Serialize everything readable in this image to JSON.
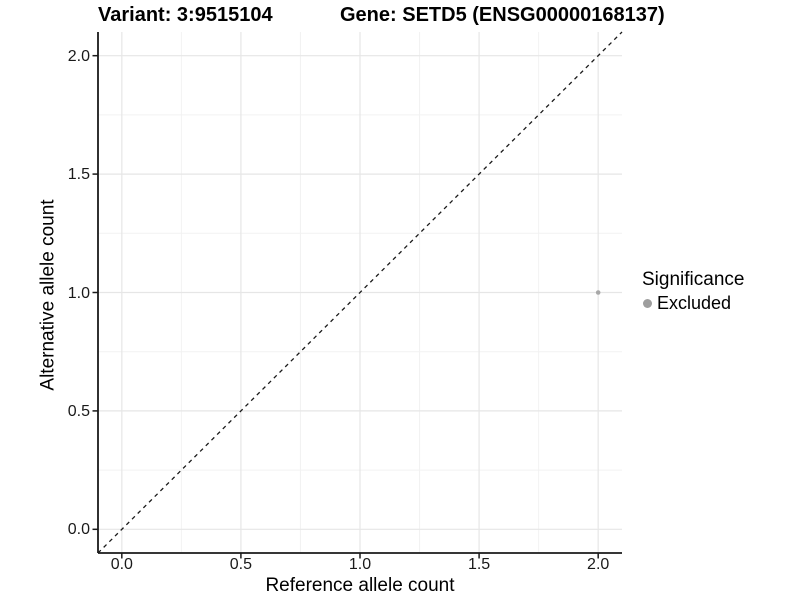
{
  "titles": {
    "variant": "Variant: 3:9515104",
    "gene": "Gene: SETD5 (ENSG00000168137)"
  },
  "legend": {
    "title": "Significance",
    "items": [
      {
        "label": "Excluded",
        "color": "#9e9e9e"
      }
    ]
  },
  "colors": {
    "background": "#ffffff",
    "grid_major": "#e6e6e6",
    "grid_minor": "#f2f2f2",
    "axis": "#1a1a1a",
    "abline": "#1a1a1a",
    "point": "#a8a8a8",
    "text": "#000000"
  },
  "chart_data": {
    "type": "scatter",
    "title_left": "Variant: 3:9515104",
    "title_right": "Gene: SETD5 (ENSG00000168137)",
    "xlabel": "Reference allele count",
    "ylabel": "Alternative allele count",
    "xlim": [
      -0.1,
      2.1
    ],
    "ylim": [
      -0.1,
      2.1
    ],
    "x_ticks": [
      0.0,
      0.5,
      1.0,
      1.5,
      2.0
    ],
    "y_ticks": [
      0.0,
      0.5,
      1.0,
      1.5,
      2.0
    ],
    "x_tick_labels": [
      "0.0",
      "0.5",
      "1.0",
      "1.5",
      "2.0"
    ],
    "y_tick_labels": [
      "0.0",
      "0.5",
      "1.0",
      "1.5",
      "2.0"
    ],
    "x_minor": [
      0.25,
      0.75,
      1.25,
      1.75
    ],
    "y_minor": [
      0.25,
      0.75,
      1.25,
      1.75
    ],
    "grid": true,
    "legend_position": "right",
    "reference_line": {
      "kind": "identity",
      "style": "dashed",
      "from": -0.1,
      "to": 2.1
    },
    "series": [
      {
        "name": "Excluded",
        "color": "#a8a8a8",
        "points": [
          {
            "x": 2.0,
            "y": 1.0
          }
        ]
      }
    ]
  }
}
